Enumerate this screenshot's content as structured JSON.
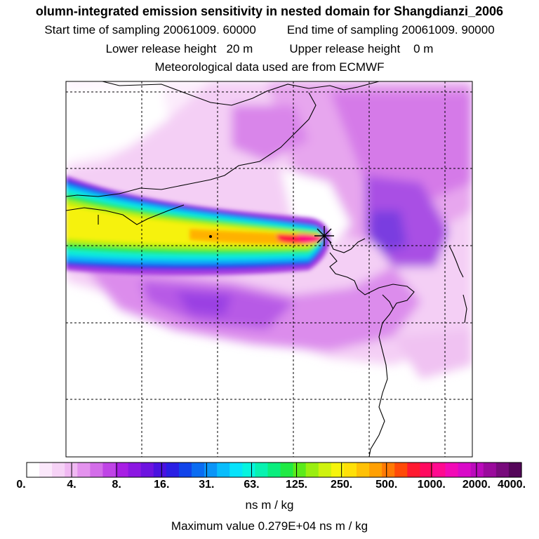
{
  "header": {
    "title": "olumn-integrated emission sensitivity in nested domain for Shangdianzi_2006",
    "start_label": "Start time of sampling 20061009. 60000",
    "end_label": "End time of sampling 20061009. 90000",
    "lower_label": "Lower release height   20 m",
    "upper_label": "Upper release height    0 m",
    "met_label": "Meteorological data used are from ECMWF"
  },
  "colors": {
    "scale": [
      "#ffffff",
      "#fbe8fb",
      "#f6d2f6",
      "#f0b8f2",
      "#e493ee",
      "#d36de9",
      "#bf44e6",
      "#a81fe4",
      "#8c18e2",
      "#6d13e0",
      "#4a12e0",
      "#2a1fe4",
      "#1144ea",
      "#0a6cf2",
      "#0a95f8",
      "#09bdfc",
      "#07e3fb",
      "#07f4df",
      "#07f2b0",
      "#0aee7e",
      "#20ea44",
      "#5bea1a",
      "#9aee10",
      "#cff20e",
      "#f6f40c",
      "#ffe008",
      "#ffc106",
      "#ffa004",
      "#ff7a04",
      "#ff4a08",
      "#ff1a30",
      "#ff0a60",
      "#ff0a90",
      "#f20ab6",
      "#d90ac8",
      "#bb0abc",
      "#9a0a9c",
      "#780a7c",
      "#55065a"
    ],
    "grid": "#000000",
    "coast": "#000000"
  },
  "chart_data": {
    "type": "heatmap",
    "title": "olumn-integrated emission sensitivity in nested domain for Shangdianzi_2006",
    "legend": {
      "tick_labels": [
        "0.",
        "4.",
        "8.",
        "16.",
        "31.",
        "63.",
        "125.",
        "250.",
        "500.",
        "1000.",
        "2000.",
        "4000."
      ],
      "tick_values": [
        0,
        4,
        8,
        16,
        31,
        63,
        125,
        250,
        500,
        1000,
        2000,
        4000
      ],
      "unit": "ns m / kg",
      "orientation": "horizontal",
      "placement": "bottom"
    },
    "max_value_text": "Maximum value  0.279E+04 ns m / kg",
    "max_value": 2790,
    "receptor": "Shangdianzi",
    "start_time": "20061009. 60000",
    "end_time": "20061009. 90000",
    "lower_release_height_m": 20,
    "upper_release_height_m": 0,
    "meteorology": "ECMWF",
    "gridlines": true
  }
}
